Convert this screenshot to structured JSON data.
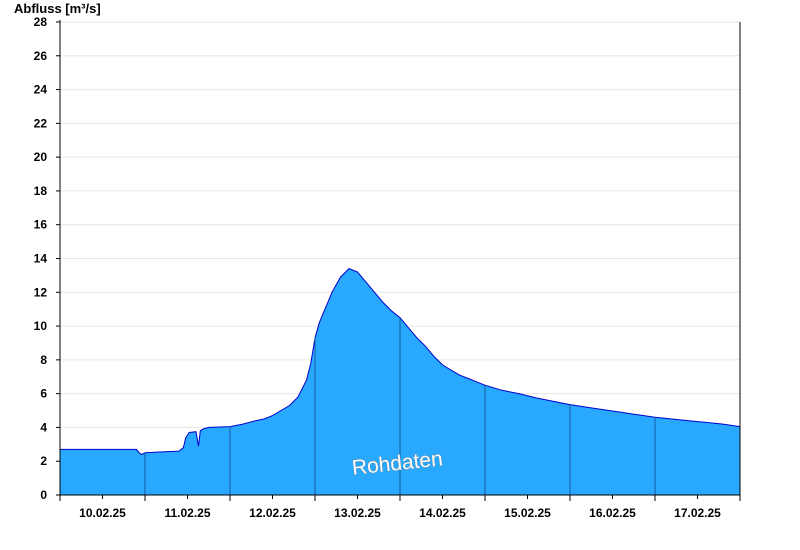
{
  "chart_data": {
    "type": "area",
    "title": "",
    "ylabel": "Abfluss [m³/s]",
    "xlabel": "",
    "ylim": [
      0,
      28
    ],
    "xlim_days": [
      0,
      8
    ],
    "y_ticks": [
      0,
      2,
      4,
      6,
      8,
      10,
      12,
      14,
      16,
      18,
      20,
      22,
      24,
      26,
      28
    ],
    "x_tick_labels": [
      "10.02.25",
      "11.02.25",
      "12.02.25",
      "13.02.25",
      "14.02.25",
      "15.02.25",
      "16.02.25",
      "17.02.25"
    ],
    "grid": true,
    "watermark": "Rohdaten",
    "colors": {
      "fill": "#29a8ff",
      "line": "#0000cc",
      "grid": "#e6e6e6",
      "day_separator": "#1a5a9a"
    },
    "series": [
      {
        "x": [
          0.0,
          0.9,
          0.93,
          0.96,
          1.0,
          1.2,
          1.4,
          1.45,
          1.48,
          1.52,
          1.6,
          1.63,
          1.65,
          1.68,
          1.75,
          2.0,
          2.15,
          2.3,
          2.4,
          2.5,
          2.6,
          2.7,
          2.8,
          2.9,
          2.95,
          3.0,
          3.05,
          3.1,
          3.15,
          3.2,
          3.3,
          3.4,
          3.5,
          3.6,
          3.7,
          3.8,
          3.9,
          4.0,
          4.1,
          4.2,
          4.3,
          4.4,
          4.5,
          4.6,
          4.7,
          4.8,
          4.9,
          5.0,
          5.2,
          5.4,
          5.6,
          5.8,
          6.0,
          6.2,
          6.4,
          6.6,
          6.8,
          7.0,
          7.2,
          7.4,
          7.6,
          7.8,
          8.0
        ],
        "y": [
          2.7,
          2.7,
          2.5,
          2.4,
          2.5,
          2.55,
          2.6,
          2.8,
          3.4,
          3.7,
          3.75,
          2.9,
          3.8,
          3.9,
          4.0,
          4.05,
          4.2,
          4.4,
          4.5,
          4.7,
          5.0,
          5.3,
          5.8,
          6.8,
          7.8,
          9.3,
          10.2,
          10.8,
          11.4,
          12.0,
          12.9,
          13.4,
          13.2,
          12.6,
          12.0,
          11.4,
          10.9,
          10.5,
          9.9,
          9.3,
          8.8,
          8.2,
          7.7,
          7.4,
          7.1,
          6.9,
          6.7,
          6.5,
          6.2,
          6.0,
          5.75,
          5.55,
          5.35,
          5.2,
          5.05,
          4.9,
          4.75,
          4.6,
          4.5,
          4.4,
          4.3,
          4.2,
          4.05
        ]
      }
    ]
  }
}
